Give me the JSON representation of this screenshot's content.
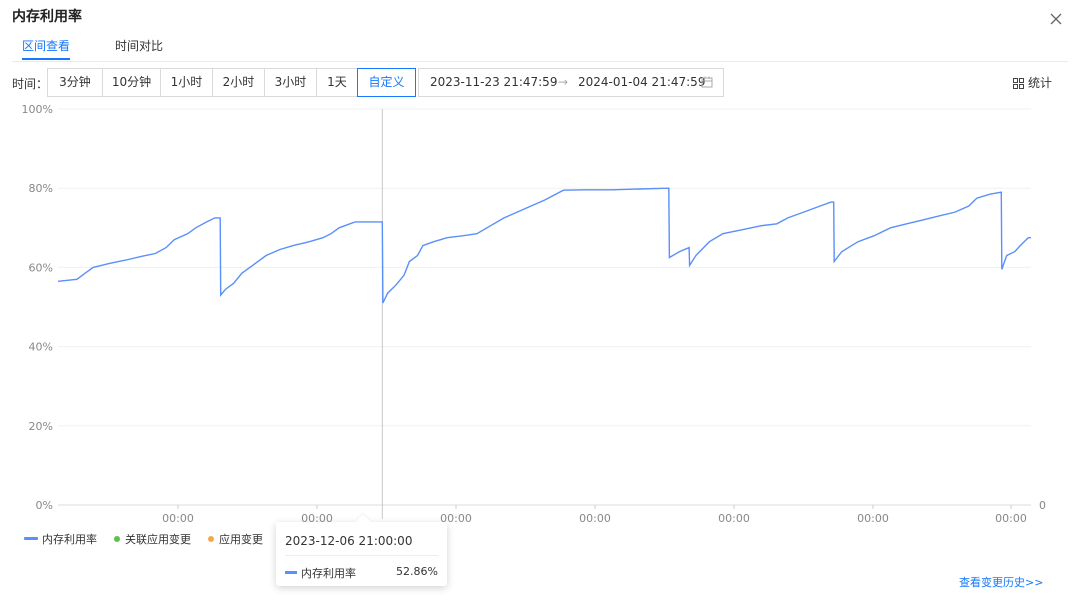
{
  "header": {
    "title": "内存利用率"
  },
  "tabs": [
    {
      "label": "区间查看",
      "active": true
    },
    {
      "label": "时间对比",
      "active": false
    }
  ],
  "time_filter": {
    "label": "时间：",
    "options": [
      "3分钟",
      "10分钟",
      "1小时",
      "2小时",
      "3小时",
      "1天",
      "自定义"
    ],
    "active": "自定义",
    "start": "2023-11-23 21:47:59",
    "arrow": "→",
    "end": "2024-01-04 21:47:59"
  },
  "stats_button": {
    "label": "统计"
  },
  "chart_data": {
    "type": "line",
    "y_ticks": [
      "100%",
      "80%",
      "60%",
      "40%",
      "20%",
      "0%"
    ],
    "ylim": [
      0,
      100
    ],
    "x_tick_labels": [
      "00:00",
      "00:00",
      "00:00",
      "00:00",
      "00:00",
      "00:00",
      "00:00"
    ],
    "right_axis_label": "0",
    "grid": true,
    "series": [
      {
        "name": "内存利用率",
        "color": "#5b8ff9",
        "points": [
          [
            0,
            56.5
          ],
          [
            0.7,
            57
          ],
          [
            1.0,
            58.5
          ],
          [
            1.3,
            60
          ],
          [
            1.9,
            61
          ],
          [
            2.6,
            62
          ],
          [
            3.1,
            62.8
          ],
          [
            3.6,
            63.5
          ],
          [
            4.0,
            65
          ],
          [
            4.3,
            67
          ],
          [
            4.8,
            68.5
          ],
          [
            5.1,
            70
          ],
          [
            5.5,
            71.5
          ],
          [
            5.8,
            72.5
          ],
          [
            6.0,
            72.5
          ],
          [
            6.02,
            53
          ],
          [
            6.2,
            54.5
          ],
          [
            6.5,
            56
          ],
          [
            6.8,
            58.5
          ],
          [
            7.2,
            60.5
          ],
          [
            7.7,
            63
          ],
          [
            8.2,
            64.5
          ],
          [
            8.7,
            65.5
          ],
          [
            9.3,
            66.5
          ],
          [
            9.8,
            67.5
          ],
          [
            10.1,
            68.5
          ],
          [
            10.4,
            70
          ],
          [
            10.8,
            71
          ],
          [
            11.0,
            71.5
          ],
          [
            12.0,
            71.5
          ],
          [
            12.02,
            51
          ],
          [
            12.2,
            53.5
          ],
          [
            12.5,
            55.5
          ],
          [
            12.8,
            58
          ],
          [
            13.0,
            61.5
          ],
          [
            13.3,
            63
          ],
          [
            13.5,
            65.5
          ],
          [
            13.9,
            66.5
          ],
          [
            14.4,
            67.5
          ],
          [
            15.0,
            68
          ],
          [
            15.5,
            68.5
          ],
          [
            16.0,
            70.5
          ],
          [
            16.5,
            72.5
          ],
          [
            17.0,
            74
          ],
          [
            17.5,
            75.5
          ],
          [
            18.0,
            77
          ],
          [
            18.7,
            79.5
          ],
          [
            19.5,
            79.6
          ],
          [
            20.5,
            79.6
          ],
          [
            21.5,
            79.8
          ],
          [
            22.6,
            80
          ],
          [
            22.62,
            62.5
          ],
          [
            23.0,
            64
          ],
          [
            23.35,
            65
          ],
          [
            23.37,
            60.5
          ],
          [
            23.6,
            63
          ],
          [
            24.1,
            66.5
          ],
          [
            24.6,
            68.5
          ],
          [
            25.3,
            69.5
          ],
          [
            26.0,
            70.5
          ],
          [
            26.6,
            71
          ],
          [
            27.0,
            72.5
          ],
          [
            27.6,
            74
          ],
          [
            28.2,
            75.5
          ],
          [
            28.6,
            76.5
          ],
          [
            28.7,
            76.5
          ],
          [
            28.72,
            61.5
          ],
          [
            29.0,
            64
          ],
          [
            29.6,
            66.5
          ],
          [
            30.2,
            68
          ],
          [
            30.8,
            70
          ],
          [
            31.4,
            71
          ],
          [
            32.0,
            72
          ],
          [
            32.6,
            73
          ],
          [
            33.2,
            74
          ],
          [
            33.7,
            75.5
          ],
          [
            34.0,
            77.5
          ],
          [
            34.5,
            78.5
          ],
          [
            34.9,
            79
          ],
          [
            34.92,
            59.5
          ],
          [
            35.1,
            63
          ],
          [
            35.4,
            64
          ],
          [
            35.6,
            65.5
          ],
          [
            35.9,
            67.5
          ],
          [
            36.0,
            67.5
          ]
        ]
      }
    ],
    "hover": {
      "x": 12.0
    },
    "legend": [
      {
        "name": "内存利用率",
        "color": "#5b8ff9",
        "marker": "line"
      },
      {
        "name": "关联应用变更",
        "color": "#5ac348",
        "marker": "dot"
      },
      {
        "name": "应用变更",
        "color": "#f5a848",
        "marker": "dot"
      }
    ]
  },
  "tooltip": {
    "date": "2023-12-06 21:00:00",
    "series_name": "内存利用率",
    "value": "52.86%"
  },
  "footer": {
    "history_link": "查看变更历史>>"
  }
}
